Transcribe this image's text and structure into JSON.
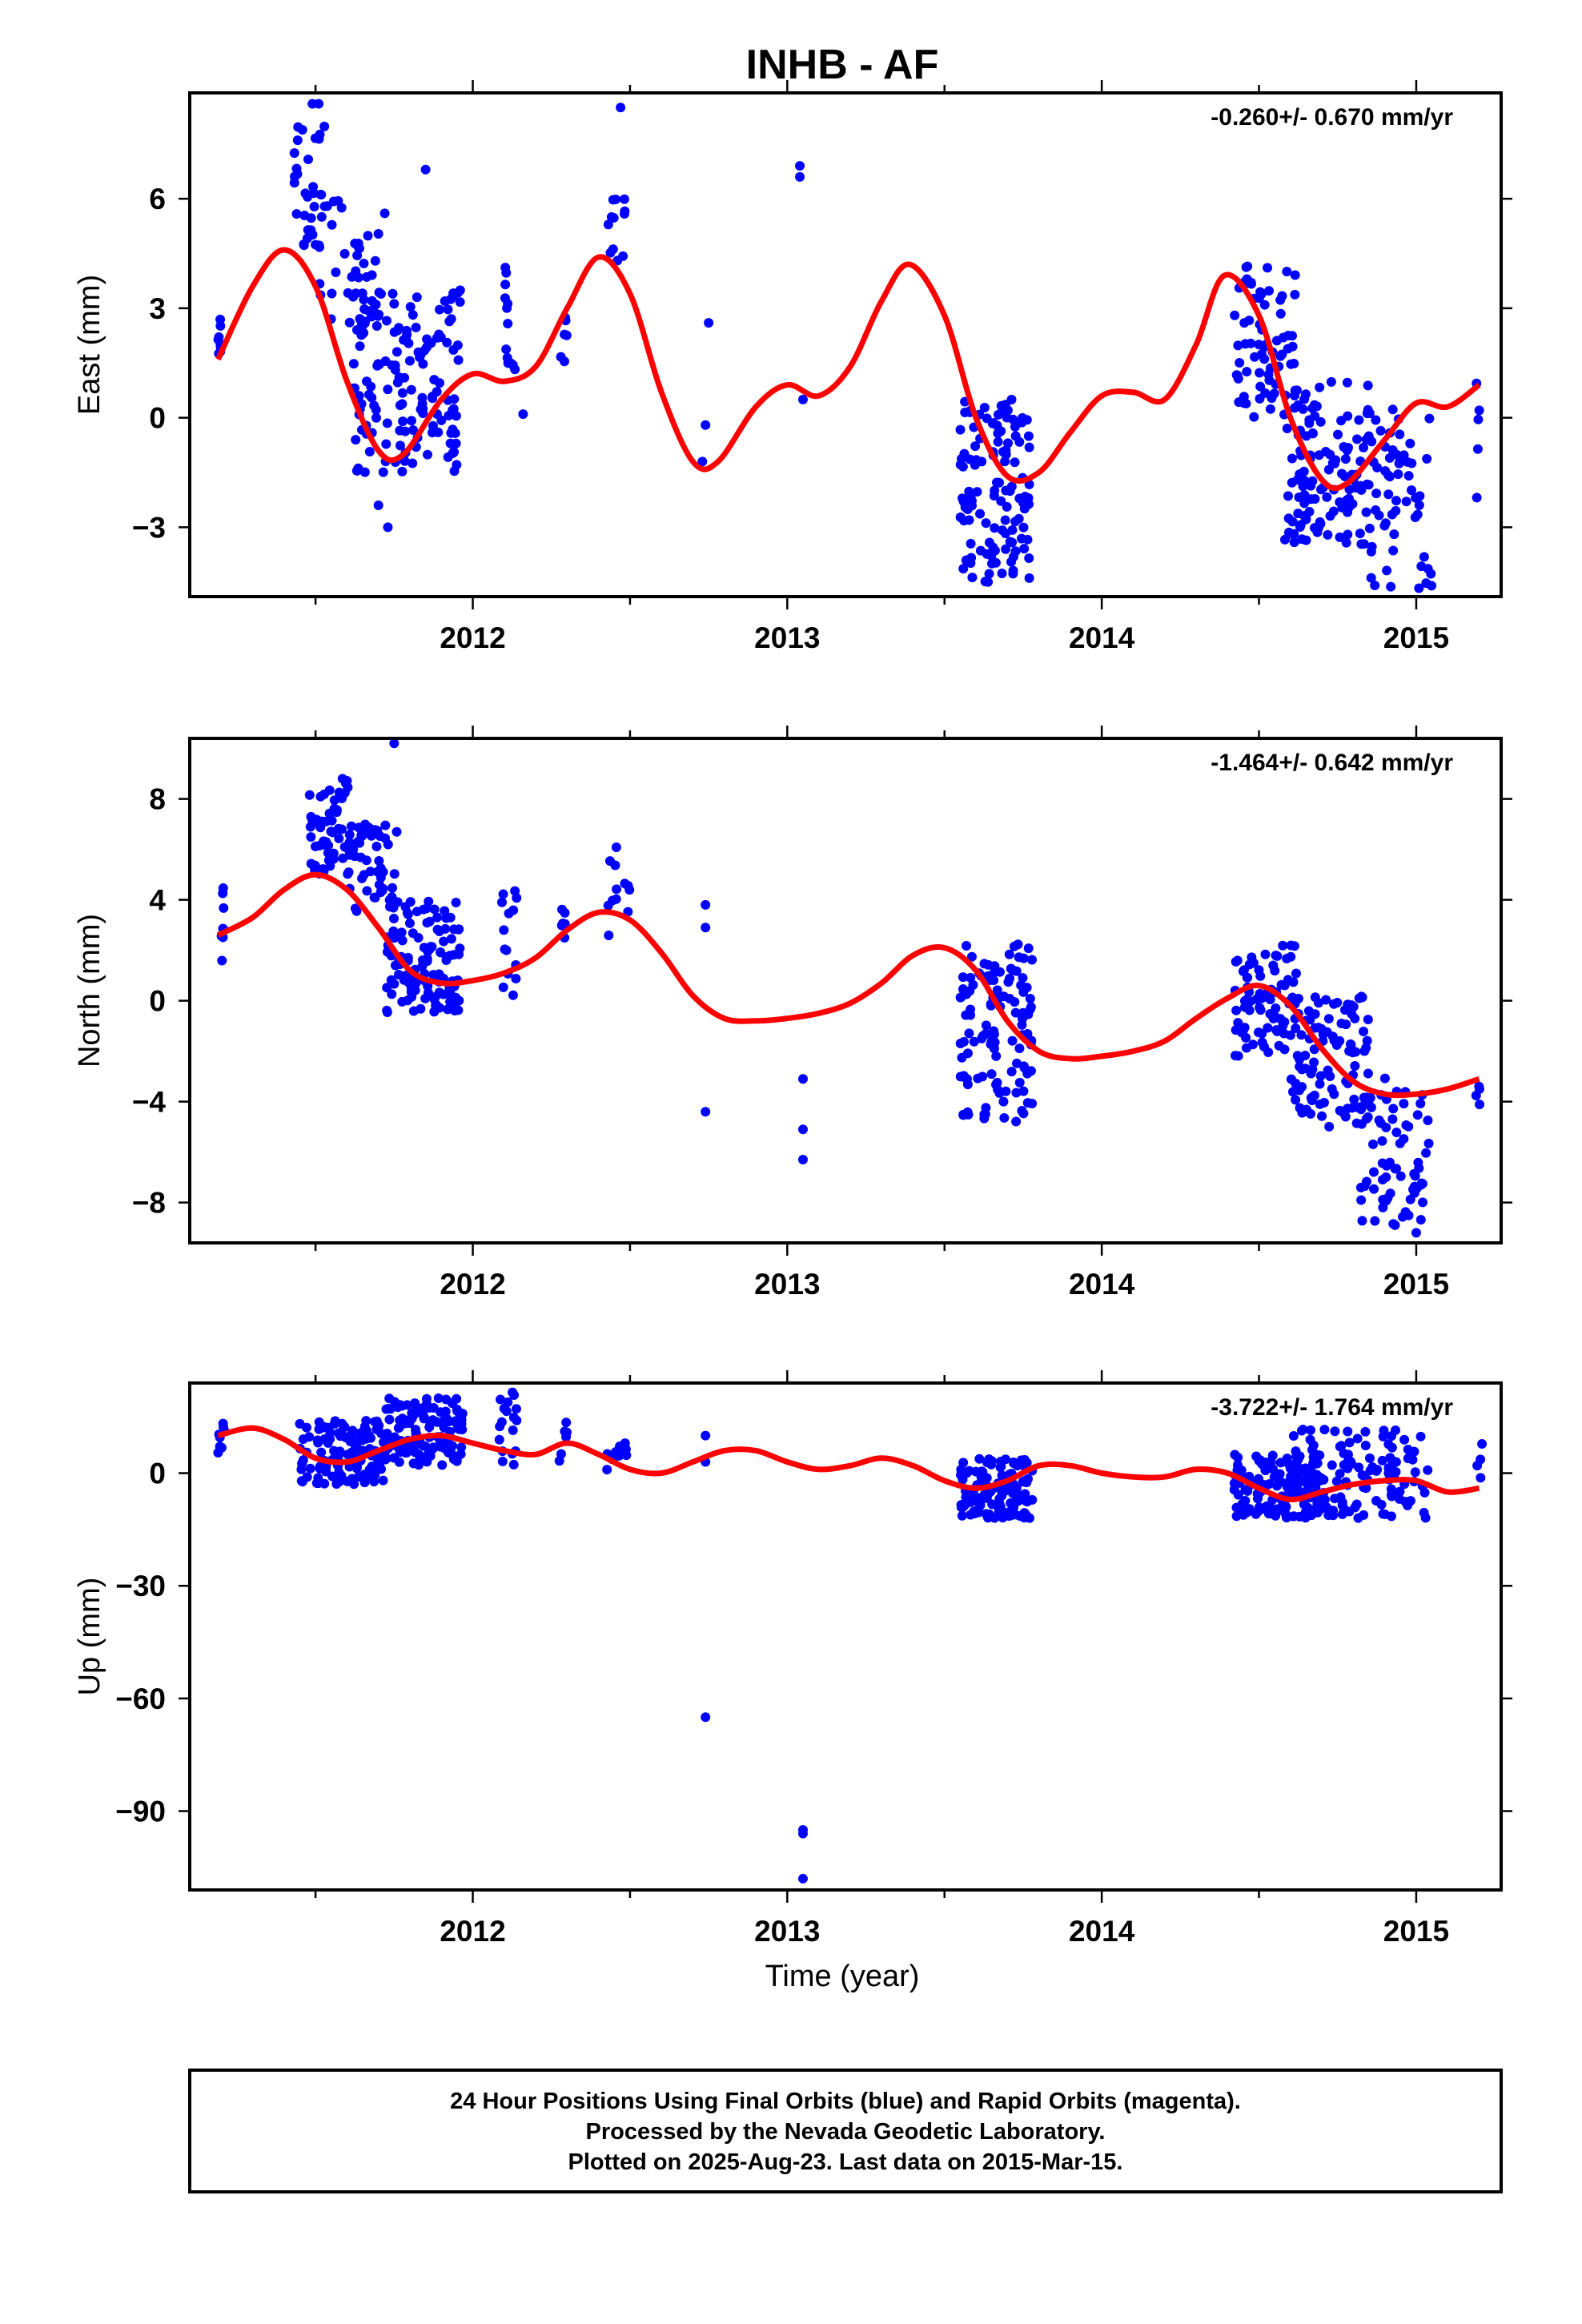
{
  "colors": {
    "points": "#0000ff",
    "model": "#ff0000",
    "axes": "#000000"
  },
  "chart_data": [
    {
      "type": "scatter",
      "title": "INHB - AF",
      "ylabel": "East (mm)",
      "rate": "-0.260+/- 0.670 mm/yr",
      "xlim": [
        2011.1,
        2015.27
      ],
      "ylim": [
        -4.9,
        8.9
      ],
      "xticks": [
        2012,
        2013,
        2014,
        2015
      ],
      "yticks": [
        -3,
        0,
        3,
        6
      ],
      "ytick_labels": [
        "−3",
        "0",
        "3",
        "6"
      ],
      "series": [
        {
          "kind": "points",
          "clusters": [
            {
              "x": [
                2011.19,
                2011.2
              ],
              "y": [
                1.5,
                3.0
              ],
              "n": 8
            },
            {
              "x": [
                2011.43,
                2011.53
              ],
              "y": [
                4.5,
                8.0
              ],
              "n": 30
            },
            {
              "x": [
                2011.5,
                2011.7
              ],
              "y": [
                2.5,
                6.0
              ],
              "n": 40
            },
            {
              "x": [
                2011.62,
                2011.96
              ],
              "y": [
                -1.5,
                3.5
              ],
              "n": 150
            },
            {
              "x": [
                2012.1,
                2012.14
              ],
              "y": [
                1.0,
                4.2
              ],
              "n": 14
            },
            {
              "x": [
                2012.28,
                2012.3
              ],
              "y": [
                0.6,
                3.0
              ],
              "n": 6
            },
            {
              "x": [
                2012.43,
                2012.5
              ],
              "y": [
                3.8,
                6.0
              ],
              "n": 12
            },
            {
              "x": [
                2013.55,
                2013.77
              ],
              "y": [
                -4.5,
                0.5
              ],
              "n": 120
            },
            {
              "x": [
                2014.42,
                2014.62
              ],
              "y": [
                0.0,
                4.2
              ],
              "n": 70
            },
            {
              "x": [
                2014.58,
                2014.85
              ],
              "y": [
                -3.5,
                1.0
              ],
              "n": 120
            },
            {
              "x": [
                2014.85,
                2015.05
              ],
              "y": [
                -4.8,
                0.5
              ],
              "n": 60
            },
            {
              "x": [
                2015.19,
                2015.21
              ],
              "y": [
                -2.2,
                1.2
              ],
              "n": 5
            }
          ],
          "points": [
            {
              "x": 2011.49,
              "y": 8.6
            },
            {
              "x": 2011.51,
              "y": 8.6
            },
            {
              "x": 2012.47,
              "y": 8.5
            },
            {
              "x": 2013.04,
              "y": 6.9
            },
            {
              "x": 2013.04,
              "y": 6.6
            },
            {
              "x": 2011.85,
              "y": 6.8
            },
            {
              "x": 2011.72,
              "y": 5.6
            },
            {
              "x": 2011.7,
              "y": -2.4
            },
            {
              "x": 2011.73,
              "y": -3.0
            },
            {
              "x": 2012.16,
              "y": 0.1
            },
            {
              "x": 2012.75,
              "y": 2.6
            },
            {
              "x": 2012.74,
              "y": -0.2
            },
            {
              "x": 2012.73,
              "y": -1.2
            },
            {
              "x": 2013.05,
              "y": 0.5
            }
          ]
        },
        {
          "kind": "model",
          "x": [
            2011.19,
            2011.3,
            2011.4,
            2011.5,
            2011.6,
            2011.7,
            2011.78,
            2011.9,
            2012.0,
            2012.1,
            2012.2,
            2012.3,
            2012.4,
            2012.5,
            2012.6,
            2012.7,
            2012.78,
            2012.9,
            2013.0,
            2013.1,
            2013.2,
            2013.3,
            2013.39,
            2013.5,
            2013.6,
            2013.7,
            2013.8,
            2013.9,
            2014.0,
            2014.1,
            2014.2,
            2014.3,
            2014.39,
            2014.5,
            2014.6,
            2014.7,
            2014.78,
            2014.9,
            2015.0,
            2015.1,
            2015.2
          ],
          "y": [
            1.6,
            3.6,
            4.6,
            3.6,
            1.0,
            -0.9,
            -1.0,
            0.5,
            1.2,
            1.0,
            1.4,
            3.0,
            4.4,
            3.4,
            0.7,
            -1.2,
            -1.2,
            0.3,
            0.9,
            0.6,
            1.4,
            3.2,
            4.2,
            2.8,
            0.0,
            -1.6,
            -1.5,
            -0.4,
            0.6,
            0.7,
            0.5,
            2.0,
            3.9,
            2.8,
            0.0,
            -1.7,
            -1.8,
            -0.6,
            0.4,
            0.3,
            0.9
          ]
        }
      ]
    },
    {
      "type": "scatter",
      "ylabel": "North (mm)",
      "rate": "-1.464+/- 0.642 mm/yr",
      "xlim": [
        2011.1,
        2015.27
      ],
      "ylim": [
        -9.6,
        10.4
      ],
      "xticks": [
        2012,
        2013,
        2014,
        2015
      ],
      "yticks": [
        -8,
        -4,
        0,
        4,
        8
      ],
      "ytick_labels": [
        "−8",
        "−4",
        "0",
        "4",
        "8"
      ],
      "series": [
        {
          "kind": "points",
          "clusters": [
            {
              "x": [
                2011.19,
                2011.21
              ],
              "y": [
                0.8,
                5.0
              ],
              "n": 8
            },
            {
              "x": [
                2011.48,
                2011.62
              ],
              "y": [
                5.0,
                8.8
              ],
              "n": 60
            },
            {
              "x": [
                2011.6,
                2011.76
              ],
              "y": [
                3.5,
                7.0
              ],
              "n": 50
            },
            {
              "x": [
                2011.72,
                2011.96
              ],
              "y": [
                -0.5,
                4.0
              ],
              "n": 120
            },
            {
              "x": [
                2012.09,
                2012.14
              ],
              "y": [
                -0.5,
                5.5
              ],
              "n": 14
            },
            {
              "x": [
                2012.27,
                2012.3
              ],
              "y": [
                1.8,
                3.8
              ],
              "n": 6
            },
            {
              "x": [
                2012.43,
                2012.5
              ],
              "y": [
                2.3,
                6.2
              ],
              "n": 12
            },
            {
              "x": [
                2013.55,
                2013.78
              ],
              "y": [
                -4.8,
                2.3
              ],
              "n": 120
            },
            {
              "x": [
                2014.42,
                2014.62
              ],
              "y": [
                -2.2,
                2.2
              ],
              "n": 80
            },
            {
              "x": [
                2014.6,
                2014.85
              ],
              "y": [
                -5.0,
                0.5
              ],
              "n": 100
            },
            {
              "x": [
                2014.82,
                2015.04
              ],
              "y": [
                -9.0,
                -3.0
              ],
              "n": 70
            },
            {
              "x": [
                2015.19,
                2015.21
              ],
              "y": [
                -4.6,
                -3.0
              ],
              "n": 4
            }
          ],
          "points": [
            {
              "x": 2011.75,
              "y": 10.2
            },
            {
              "x": 2012.74,
              "y": 3.8
            },
            {
              "x": 2012.74,
              "y": 2.9
            },
            {
              "x": 2012.74,
              "y": -4.4
            },
            {
              "x": 2013.05,
              "y": -3.1
            },
            {
              "x": 2013.05,
              "y": -5.1
            },
            {
              "x": 2013.05,
              "y": -6.3
            },
            {
              "x": 2015.0,
              "y": -9.2
            }
          ]
        },
        {
          "kind": "model",
          "x": [
            2011.19,
            2011.3,
            2011.4,
            2011.5,
            2011.6,
            2011.7,
            2011.8,
            2011.9,
            2012.0,
            2012.1,
            2012.2,
            2012.3,
            2012.4,
            2012.5,
            2012.6,
            2012.7,
            2012.8,
            2012.9,
            2013.0,
            2013.1,
            2013.2,
            2013.3,
            2013.4,
            2013.5,
            2013.6,
            2013.7,
            2013.8,
            2013.9,
            2014.0,
            2014.1,
            2014.2,
            2014.3,
            2014.4,
            2014.5,
            2014.6,
            2014.7,
            2014.8,
            2014.9,
            2015.0,
            2015.1,
            2015.2
          ],
          "y": [
            2.6,
            3.3,
            4.4,
            5.0,
            4.4,
            2.9,
            1.2,
            0.7,
            0.8,
            1.1,
            1.7,
            2.8,
            3.5,
            3.2,
            1.9,
            0.2,
            -0.7,
            -0.8,
            -0.7,
            -0.5,
            -0.1,
            0.7,
            1.8,
            2.1,
            1.2,
            -0.8,
            -2.0,
            -2.3,
            -2.2,
            -2.0,
            -1.6,
            -0.7,
            0.1,
            0.6,
            -0.2,
            -1.9,
            -3.2,
            -3.7,
            -3.7,
            -3.5,
            -3.1
          ]
        }
      ]
    },
    {
      "type": "scatter",
      "ylabel": "Up (mm)",
      "xlabel": "Time (year)",
      "rate": "-3.722+/- 1.764 mm/yr",
      "xlim": [
        2011.1,
        2015.27
      ],
      "ylim": [
        -111,
        24
      ],
      "xticks": [
        2012,
        2013,
        2014,
        2015
      ],
      "yticks": [
        -90,
        -60,
        -30,
        0
      ],
      "ytick_labels": [
        "−90",
        "−60",
        "−30",
        "0"
      ],
      "series": [
        {
          "kind": "points",
          "clusters": [
            {
              "x": [
                2011.19,
                2011.21
              ],
              "y": [
                3,
                15
              ],
              "n": 8
            },
            {
              "x": [
                2011.45,
                2011.72
              ],
              "y": [
                -3,
                14
              ],
              "n": 120
            },
            {
              "x": [
                2011.72,
                2011.97
              ],
              "y": [
                2,
                20
              ],
              "n": 130
            },
            {
              "x": [
                2012.08,
                2012.14
              ],
              "y": [
                2,
                22
              ],
              "n": 18
            },
            {
              "x": [
                2012.27,
                2012.3
              ],
              "y": [
                3,
                14
              ],
              "n": 6
            },
            {
              "x": [
                2012.42,
                2012.5
              ],
              "y": [
                -1,
                12
              ],
              "n": 12
            },
            {
              "x": [
                2013.55,
                2013.78
              ],
              "y": [
                -12,
                4
              ],
              "n": 120
            },
            {
              "x": [
                2014.42,
                2014.7
              ],
              "y": [
                -12,
                5
              ],
              "n": 130
            },
            {
              "x": [
                2014.6,
                2015.04
              ],
              "y": [
                -12,
                12
              ],
              "n": 130
            },
            {
              "x": [
                2015.19,
                2015.21
              ],
              "y": [
                -3,
                8
              ],
              "n": 4
            }
          ],
          "points": [
            {
              "x": 2012.74,
              "y": 10
            },
            {
              "x": 2012.74,
              "y": 3
            },
            {
              "x": 2012.74,
              "y": -65
            },
            {
              "x": 2013.05,
              "y": -95
            },
            {
              "x": 2013.05,
              "y": -96
            },
            {
              "x": 2013.05,
              "y": -108
            }
          ]
        },
        {
          "kind": "model",
          "x": [
            2011.19,
            2011.3,
            2011.4,
            2011.5,
            2011.6,
            2011.7,
            2011.8,
            2011.9,
            2012.0,
            2012.1,
            2012.2,
            2012.3,
            2012.4,
            2012.5,
            2012.6,
            2012.7,
            2012.8,
            2012.9,
            2013.0,
            2013.1,
            2013.2,
            2013.3,
            2013.4,
            2013.5,
            2013.6,
            2013.7,
            2013.8,
            2013.9,
            2014.0,
            2014.1,
            2014.2,
            2014.3,
            2014.4,
            2014.5,
            2014.6,
            2014.7,
            2014.8,
            2014.9,
            2015.0,
            2015.1,
            2015.2
          ],
          "y": [
            10,
            12,
            9,
            4,
            3,
            6,
            9,
            10,
            8,
            6,
            5,
            8,
            5,
            1,
            0,
            3,
            6,
            6,
            3,
            1,
            2,
            4,
            2,
            -2,
            -4,
            -2,
            2,
            2,
            0,
            -1,
            -1,
            1,
            0,
            -4,
            -7,
            -5,
            -3,
            -2,
            -2,
            -5,
            -4
          ]
        }
      ]
    }
  ],
  "footer": {
    "line1": "24 Hour Positions Using Final Orbits (blue) and Rapid Orbits (magenta).",
    "line2": "Processed by the Nevada Geodetic Laboratory.",
    "line3": "Plotted on 2025-Aug-23. Last data on 2015-Mar-15."
  }
}
